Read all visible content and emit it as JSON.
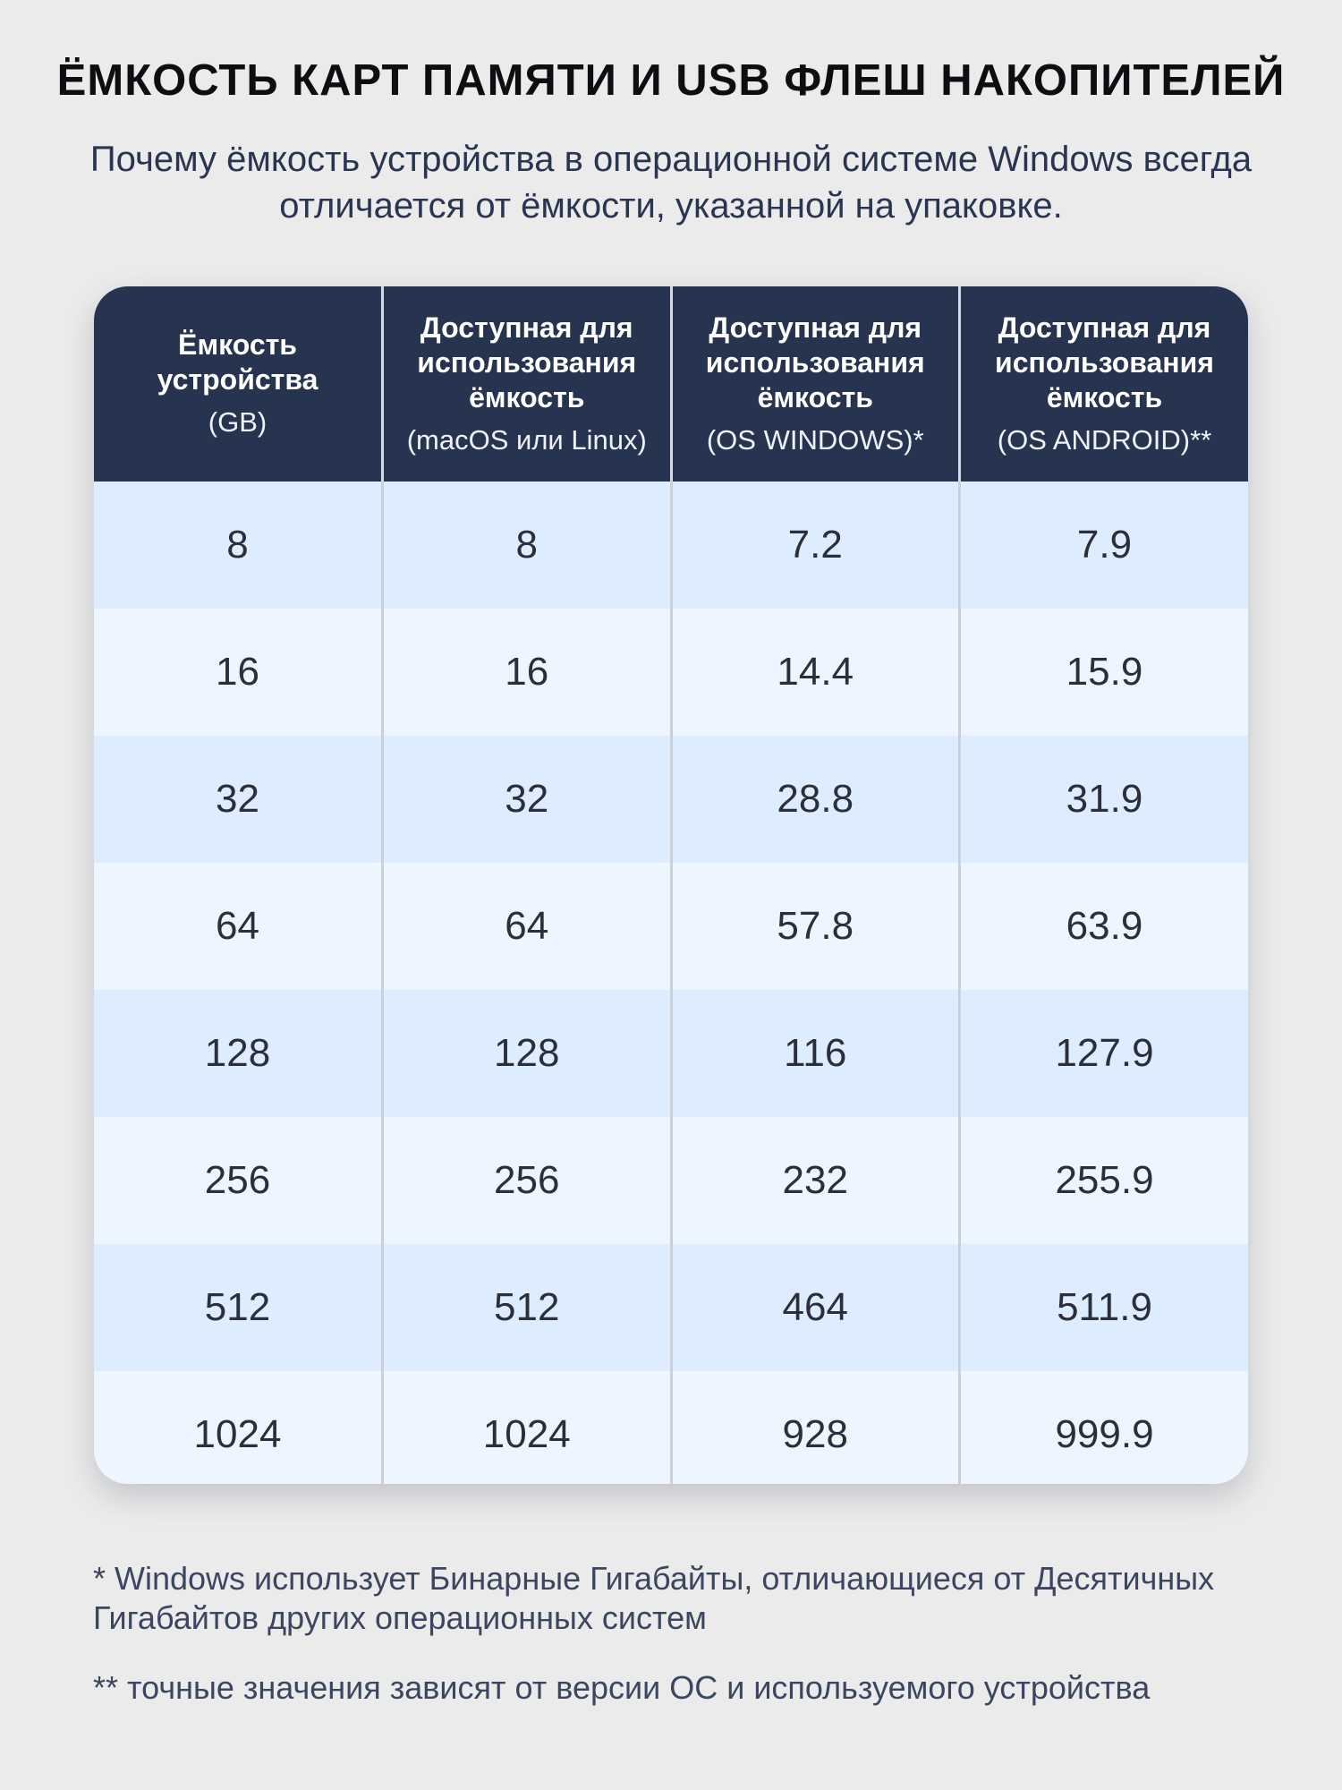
{
  "header": {
    "title": "ЁМКОСТЬ КАРТ ПАМЯТИ И USB ФЛЕШ НАКОПИТЕЛЕЙ",
    "subtitle": "Почему ёмкость устройства в операционной системе Windows всегда отличается от ёмкости, указанной на упаковке."
  },
  "table": {
    "columns": [
      {
        "title": "Ёмкость\nустройства",
        "sub": "(GB)"
      },
      {
        "title": "Доступная для\nиспользования\nёмкость",
        "sub": "(macOS или Linux)"
      },
      {
        "title": "Доступная для\nиспользования\nёмкость",
        "sub": "(OS WINDOWS)*"
      },
      {
        "title": "Доступная для\nиспользования\nёмкость",
        "sub": "(OS ANDROID)**"
      }
    ],
    "rows": [
      [
        "8",
        "8",
        "7.2",
        "7.9"
      ],
      [
        "16",
        "16",
        "14.4",
        "15.9"
      ],
      [
        "32",
        "32",
        "28.8",
        "31.9"
      ],
      [
        "64",
        "64",
        "57.8",
        "63.9"
      ],
      [
        "128",
        "128",
        "116",
        "127.9"
      ],
      [
        "256",
        "256",
        "232",
        "255.9"
      ],
      [
        "512",
        "512",
        "464",
        "511.9"
      ],
      [
        "1024",
        "1024",
        "928",
        "999.9"
      ]
    ]
  },
  "footnotes": [
    "* Windows использует Бинарные Гигабайты, отличающиеся от Десятичных Гигабайтов других операционных систем",
    "** точные значения зависят от версии ОС и используемого устройства"
  ],
  "colors": {
    "background": "#ebebeb",
    "header_bg": "#26344f",
    "row_odd": "#ddedff",
    "row_even": "#edf5ff"
  }
}
